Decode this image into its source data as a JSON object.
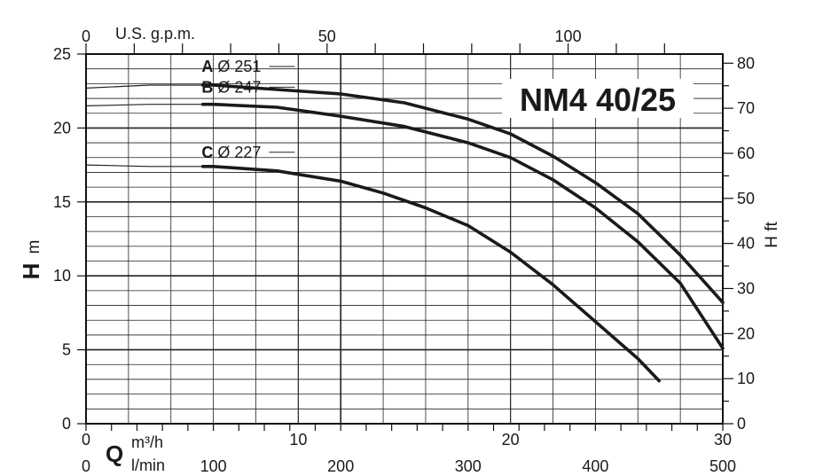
{
  "chart_data": {
    "type": "line",
    "title": "NM4 40/25",
    "x_axis": {
      "label_symbol": "Q",
      "unit": "m³/h",
      "range": [
        0,
        30
      ],
      "ticks": [
        0,
        10,
        20,
        30
      ]
    },
    "x_axis_lmin": {
      "unit": "l/min",
      "ticks": [
        0,
        100,
        200,
        300,
        400,
        500
      ]
    },
    "x_axis_gpm": {
      "label": "U.S. g.p.m.",
      "ticks": [
        0,
        50,
        100
      ]
    },
    "y_axis": {
      "label_symbol": "H",
      "unit": "m",
      "range": [
        0,
        25
      ],
      "ticks": [
        0,
        5,
        10,
        15,
        20,
        25
      ]
    },
    "y_axis_ft": {
      "label": "H ft",
      "ticks": [
        0,
        10,
        20,
        30,
        40,
        50,
        60,
        70,
        80
      ]
    },
    "grid": true,
    "series": [
      {
        "name": "A",
        "diameter_label": "Ø 251",
        "points": [
          [
            0,
            22.7
          ],
          [
            3,
            22.9
          ],
          [
            6,
            22.9
          ],
          [
            9,
            22.6
          ],
          [
            12,
            22.3
          ],
          [
            15,
            21.7
          ],
          [
            18,
            20.6
          ],
          [
            20,
            19.6
          ],
          [
            22,
            18.1
          ],
          [
            24,
            16.3
          ],
          [
            26,
            14.2
          ],
          [
            28,
            11.4
          ],
          [
            30,
            8.2
          ]
        ]
      },
      {
        "name": "B",
        "diameter_label": "Ø 247",
        "points": [
          [
            0,
            21.5
          ],
          [
            3,
            21.6
          ],
          [
            6,
            21.6
          ],
          [
            9,
            21.4
          ],
          [
            12,
            20.8
          ],
          [
            15,
            20.1
          ],
          [
            18,
            19.0
          ],
          [
            20,
            18.0
          ],
          [
            22,
            16.5
          ],
          [
            24,
            14.6
          ],
          [
            26,
            12.3
          ],
          [
            28,
            9.5
          ],
          [
            30,
            5.1
          ]
        ]
      },
      {
        "name": "C",
        "diameter_label": "Ø 227",
        "points": [
          [
            0,
            17.5
          ],
          [
            3,
            17.4
          ],
          [
            6,
            17.4
          ],
          [
            9,
            17.1
          ],
          [
            12,
            16.4
          ],
          [
            14,
            15.6
          ],
          [
            16,
            14.6
          ],
          [
            18,
            13.4
          ],
          [
            20,
            11.6
          ],
          [
            22,
            9.4
          ],
          [
            24,
            6.9
          ],
          [
            26,
            4.4
          ],
          [
            27,
            2.9
          ]
        ]
      }
    ]
  }
}
